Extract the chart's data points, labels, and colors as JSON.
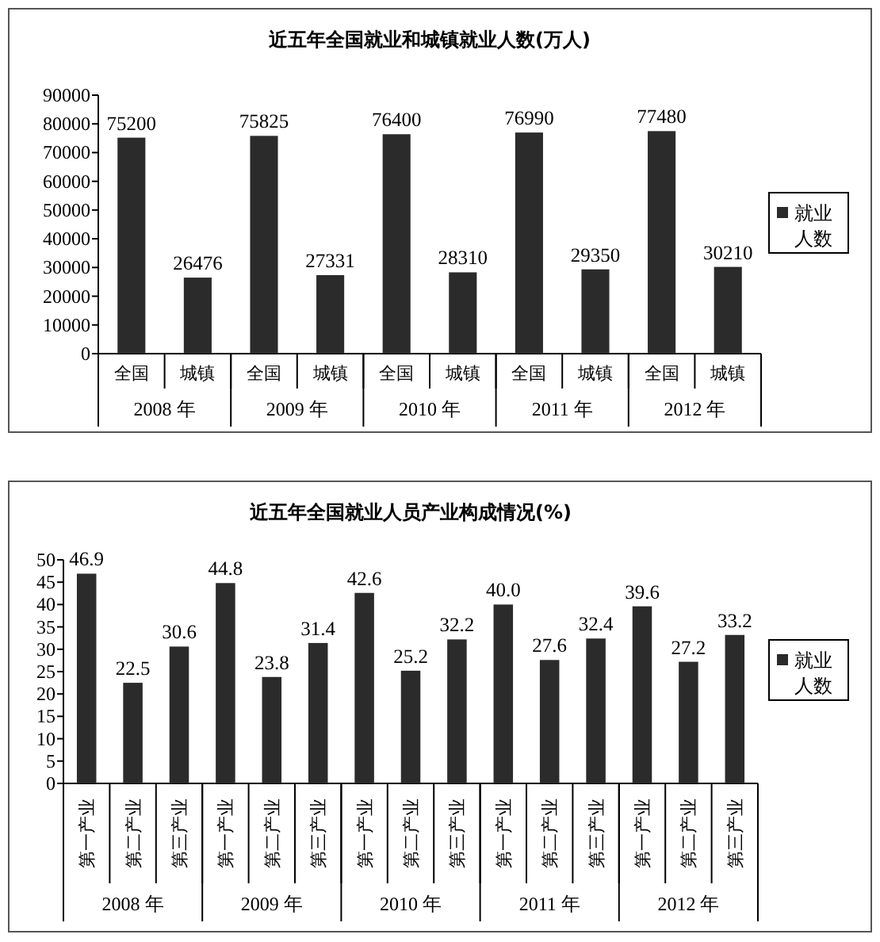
{
  "chart_data": [
    {
      "type": "bar",
      "title": "近五年全国就业和城镇就业人数(万人)",
      "categories": [
        "全国",
        "城镇",
        "全国",
        "城镇",
        "全国",
        "城镇",
        "全国",
        "城镇",
        "全国",
        "城镇"
      ],
      "series": [
        {
          "name": "就业人数",
          "color": "#2b2b2b",
          "values": [
            75200,
            26476,
            75825,
            27331,
            76400,
            28310,
            76990,
            29350,
            77480,
            30210
          ]
        }
      ],
      "ylim": [
        0,
        90000
      ],
      "yticks": [
        0,
        10000,
        20000,
        30000,
        40000,
        50000,
        60000,
        70000,
        80000,
        90000
      ],
      "annotations": [
        "2008 年",
        "2009 年",
        "2010 年",
        "2011 年",
        "2012 年"
      ],
      "data_labels": true,
      "legend": "right",
      "grid": false
    },
    {
      "type": "bar",
      "title": "近五年全国就业人员产业构成情况(%)",
      "categories": [
        "第一产业",
        "第二产业",
        "第三产业",
        "第一产业",
        "第二产业",
        "第三产业",
        "第一产业",
        "第二产业",
        "第三产业",
        "第一产业",
        "第二产业",
        "第三产业",
        "第一产业",
        "第二产业",
        "第三产业"
      ],
      "series": [
        {
          "name": "就业人数",
          "color": "#2b2b2b",
          "values": [
            46.9,
            22.5,
            30.6,
            44.8,
            23.8,
            31.4,
            42.6,
            25.2,
            32.2,
            40.0,
            27.6,
            32.4,
            39.6,
            27.2,
            33.2
          ]
        }
      ],
      "value_labels": [
        "46.9",
        "22.5",
        "30.6",
        "44.8",
        "23.8",
        "31.4",
        "42.6",
        "25.2",
        "32.2",
        "40.0",
        "27.6",
        "32.4",
        "39.6",
        "27.2",
        "33.2"
      ],
      "ylim": [
        0,
        50
      ],
      "yticks": [
        0,
        5,
        10,
        15,
        20,
        25,
        30,
        35,
        40,
        45,
        50
      ],
      "annotations": [
        "2008 年",
        "2009 年",
        "2010 年",
        "2011 年",
        "2012 年"
      ],
      "legend": "right",
      "grid": false
    }
  ]
}
